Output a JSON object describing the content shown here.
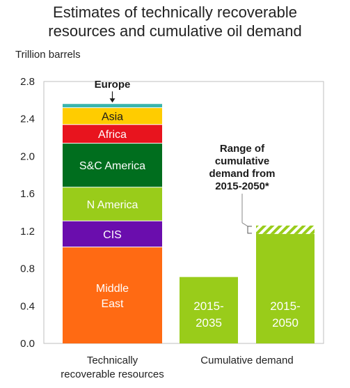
{
  "title_lines": [
    "Estimates of technically recoverable",
    "resources and cumulative oil demand"
  ],
  "chart_data": {
    "type": "bar",
    "stacked": true,
    "title": "Estimates of technically recoverable resources and cumulative oil demand",
    "ylabel": "Trillion barrels",
    "ylim": [
      0,
      2.8
    ],
    "yticks": [
      "0.0",
      "0.4",
      "0.8",
      "1.2",
      "1.6",
      "2.0",
      "2.4",
      "2.8"
    ],
    "ytick_values": [
      0,
      0.4,
      0.8,
      1.2,
      1.6,
      2.0,
      2.4,
      2.8
    ],
    "grid": false,
    "categories": [
      "Technically recoverable resources",
      "Cumulative demand"
    ],
    "category_label_lines": [
      [
        "Technically",
        "recoverable resources"
      ],
      [
        "Cumulative demand"
      ]
    ],
    "resources_segments": [
      {
        "name": "Middle East",
        "lines": [
          "Middle",
          "East"
        ],
        "value": 1.03,
        "color": "#ff6a13",
        "dark_text": false
      },
      {
        "name": "CIS",
        "lines": [
          "CIS"
        ],
        "value": 0.28,
        "color": "#6a0dad",
        "dark_text": false
      },
      {
        "name": "N America",
        "lines": [
          "N America"
        ],
        "value": 0.36,
        "color": "#99cc1a",
        "dark_text": false
      },
      {
        "name": "S&C America",
        "lines": [
          "S&C America"
        ],
        "value": 0.47,
        "color": "#006e1e",
        "dark_text": false
      },
      {
        "name": "Africa",
        "lines": [
          "Africa"
        ],
        "value": 0.2,
        "color": "#e8141e",
        "dark_text": false
      },
      {
        "name": "Asia",
        "lines": [
          "Asia"
        ],
        "value": 0.18,
        "color": "#ffcc00",
        "dark_text": true
      },
      {
        "name": "Europe",
        "lines": [],
        "value": 0.04,
        "color": "#3ab5ad",
        "dark_text": false
      }
    ],
    "europe_callout": "Europe",
    "demand_bars": [
      {
        "name": "2015-2035",
        "lines": [
          "2015-",
          "2035"
        ],
        "value": 0.71,
        "range_top": null,
        "color": "#99cc1a"
      },
      {
        "name": "2015-2050",
        "lines": [
          "2015-",
          "2050"
        ],
        "value": 1.17,
        "range_top": 1.26,
        "color": "#99cc1a"
      }
    ],
    "range_annotation_lines": [
      "Range of",
      "cumulative",
      "demand from",
      "2015-2050*"
    ]
  }
}
